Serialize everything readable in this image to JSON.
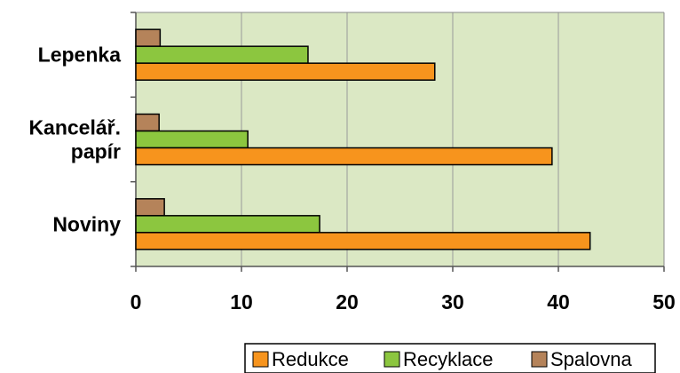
{
  "chart_data": {
    "type": "bar",
    "orientation": "horizontal",
    "categories": [
      {
        "lines": [
          "Lepenka"
        ]
      },
      {
        "lines": [
          "Kancelář.",
          "papír"
        ]
      },
      {
        "lines": [
          "Noviny"
        ]
      }
    ],
    "series": [
      {
        "name": "Spalovna",
        "color": "#b5835a",
        "values": [
          2.3,
          2.2,
          2.7
        ]
      },
      {
        "name": "Recyklace",
        "color": "#8cc63f",
        "values": [
          16.3,
          10.6,
          17.4
        ]
      },
      {
        "name": "Redukce",
        "color": "#f7941d",
        "values": [
          28.3,
          39.4,
          43.0
        ]
      }
    ],
    "legend_order": [
      "Redukce",
      "Recyklace",
      "Spalovna"
    ],
    "xlim": [
      0,
      50
    ],
    "xticks": [
      0,
      10,
      20,
      30,
      40,
      50
    ],
    "grid": true,
    "plot_background": "#dbe8c4",
    "legend_position": "bottom-right",
    "title": "",
    "xlabel": "",
    "ylabel": ""
  }
}
